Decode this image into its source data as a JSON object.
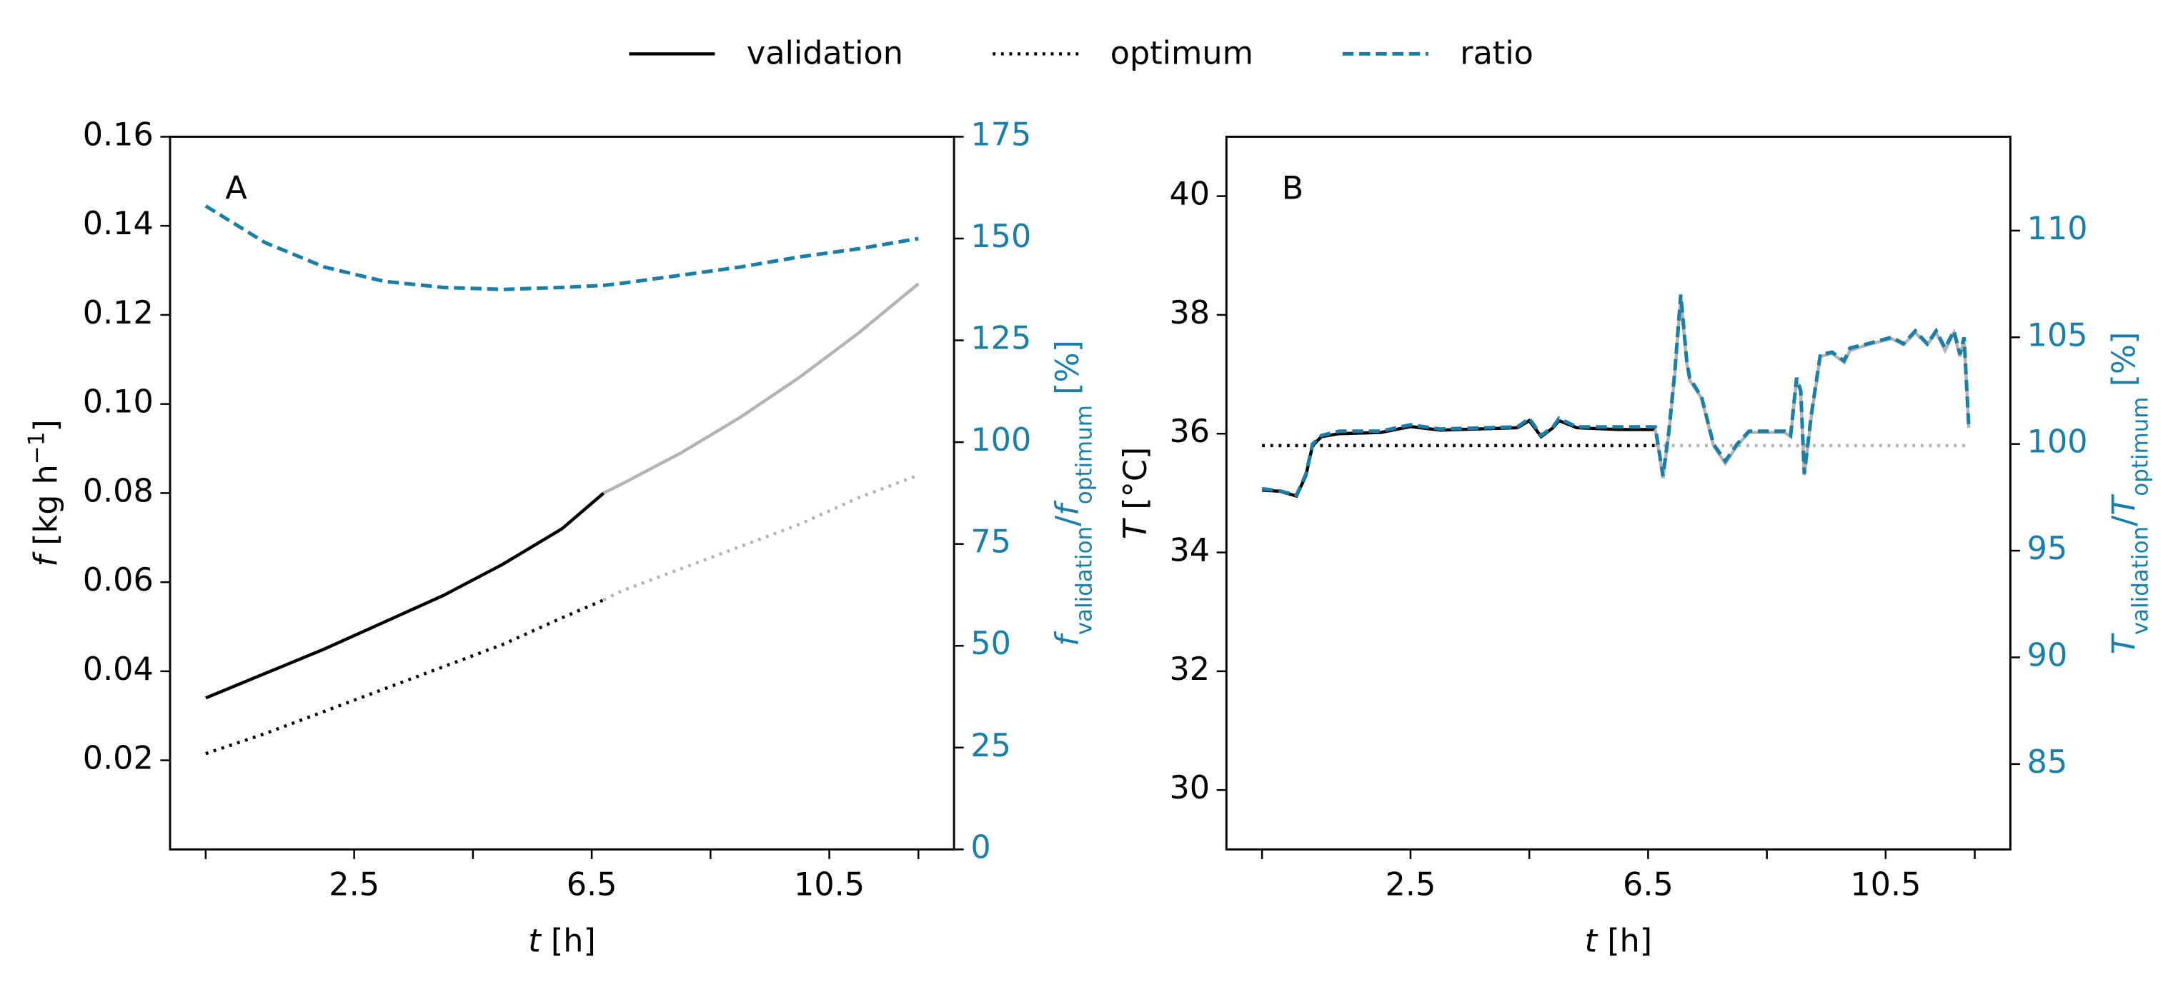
{
  "chart_data": [
    {
      "type": "line",
      "panel_label": "A",
      "xlabel": [
        {
          "text": "t",
          "style": "italic"
        },
        {
          "text": " [h]"
        }
      ],
      "ylabel": [
        {
          "text": "f",
          "style": "italic"
        },
        {
          "text": " [kg h"
        },
        {
          "text": "−1",
          "style": "sup"
        },
        {
          "text": "]"
        }
      ],
      "y2label": [
        {
          "text": "f",
          "style": "italic"
        },
        {
          "text": "validation",
          "style": "sub"
        },
        {
          "text": "/"
        },
        {
          "text": "f",
          "style": "italic"
        },
        {
          "text": "optimum",
          "style": "sub"
        },
        {
          "text": " [%]"
        }
      ],
      "y2color": "#1a7fa8",
      "xlim": [
        -0.6,
        12.6
      ],
      "xticks": [
        2.5,
        6.5,
        10.5
      ],
      "xticks_minor": [
        0,
        4.5,
        8.5,
        12
      ],
      "ylim": [
        0,
        0.16
      ],
      "yticks": [
        0.02,
        0.04,
        0.06,
        0.08,
        {
          "value": 0.1,
          "label": "0.10"
        },
        0.12,
        0.14,
        0.16
      ],
      "y2lim": [
        0,
        175
      ],
      "y2ticks": [
        0,
        25,
        50,
        75,
        100,
        125,
        150,
        175
      ],
      "x": [
        0,
        1,
        2,
        3,
        4,
        5,
        6,
        6.7,
        7,
        8,
        9,
        10,
        11,
        12
      ],
      "series": [
        {
          "name": "validation",
          "color": "#000000",
          "style": "solid",
          "values": [
            0.034,
            0.0395,
            0.045,
            0.051,
            0.057,
            0.064,
            0.072,
            0.08,
            null,
            null,
            null,
            null,
            null,
            null
          ]
        },
        {
          "name": "optimum",
          "color": "#000000",
          "style": "dotted",
          "values": [
            0.0215,
            0.026,
            0.031,
            0.036,
            0.041,
            0.046,
            0.052,
            0.056,
            null,
            null,
            null,
            null,
            null,
            null
          ]
        },
        {
          "color": "#b3b3b3",
          "style": "solid",
          "values": [
            null,
            null,
            null,
            null,
            null,
            null,
            null,
            0.08,
            0.082,
            0.089,
            0.097,
            0.106,
            0.116,
            0.127
          ]
        },
        {
          "color": "#b3b3b3",
          "style": "dotted",
          "values": [
            null,
            null,
            null,
            null,
            null,
            null,
            null,
            0.056,
            0.058,
            0.063,
            0.068,
            0.073,
            0.079,
            0.084
          ]
        },
        {
          "name": "ratio",
          "color": "#1a7fa8",
          "style": "dashed",
          "axis": "y2",
          "values": [
            158,
            149,
            143,
            139.5,
            138,
            137.5,
            138,
            138.5,
            139,
            141,
            143,
            145.5,
            147.5,
            150
          ]
        }
      ]
    },
    {
      "type": "line",
      "panel_label": "B",
      "xlabel": [
        {
          "text": "t",
          "style": "italic"
        },
        {
          "text": " [h]"
        }
      ],
      "ylabel": [
        {
          "text": "T",
          "style": "italic"
        },
        {
          "text": " [°C]"
        }
      ],
      "y2label": [
        {
          "text": "T",
          "style": "italic"
        },
        {
          "text": "validation",
          "style": "sub"
        },
        {
          "text": "/"
        },
        {
          "text": "T",
          "style": "italic"
        },
        {
          "text": "optimum",
          "style": "sub"
        },
        {
          "text": " [%]"
        }
      ],
      "y2color": "#1a7fa8",
      "xlim": [
        -0.6,
        12.6
      ],
      "xticks": [
        2.5,
        6.5,
        10.5
      ],
      "xticks_minor": [
        0,
        4.5,
        8.5,
        12
      ],
      "ylim": [
        29,
        41
      ],
      "yticks": [
        30,
        32,
        34,
        36,
        38,
        40
      ],
      "y2lim": [
        81,
        114.4
      ],
      "y2ticks": [
        85,
        90,
        95,
        100,
        105,
        110
      ],
      "x": [
        0,
        0.3,
        0.58,
        0.74,
        0.85,
        1.0,
        1.3,
        2.0,
        2.5,
        3.0,
        4.3,
        4.5,
        4.7,
        4.9,
        5.0,
        5.3,
        6.0,
        6.62,
        6.7,
        6.75,
        6.85,
        6.95,
        7.05,
        7.15,
        7.2,
        7.4,
        7.6,
        7.8,
        8.0,
        8.2,
        8.8,
        8.9,
        9.0,
        9.07,
        9.13,
        9.25,
        9.4,
        9.6,
        9.8,
        9.9,
        10.2,
        10.6,
        10.8,
        11.0,
        11.2,
        11.35,
        11.5,
        11.65,
        11.75,
        11.82,
        11.9
      ],
      "series": [
        {
          "color": "#000000",
          "style": "solid",
          "values": [
            35.05,
            35.03,
            34.95,
            35.3,
            35.8,
            35.95,
            36.0,
            36.02,
            36.12,
            36.06,
            36.1,
            36.22,
            35.95,
            36.1,
            36.22,
            36.1,
            36.07,
            36.07,
            null,
            null,
            null,
            null,
            null,
            null,
            null,
            null,
            null,
            null,
            null,
            null,
            null,
            null,
            null,
            null,
            null,
            null,
            null,
            null,
            null,
            null,
            null,
            null,
            null,
            null,
            null,
            null,
            null,
            null,
            null,
            null,
            null
          ]
        },
        {
          "color": "#000000",
          "style": "dotted",
          "values": [
            35.8,
            35.8,
            35.8,
            35.8,
            35.8,
            35.8,
            35.8,
            35.8,
            35.8,
            35.8,
            35.8,
            35.8,
            35.8,
            35.8,
            35.8,
            35.8,
            35.8,
            35.8,
            null,
            null,
            null,
            null,
            null,
            null,
            null,
            null,
            null,
            null,
            null,
            null,
            null,
            null,
            null,
            null,
            null,
            null,
            null,
            null,
            null,
            null,
            null,
            null,
            null,
            null,
            null,
            null,
            null,
            null,
            null,
            null,
            null
          ]
        },
        {
          "color": "#b3b3b3",
          "style": "solid",
          "values": [
            null,
            null,
            null,
            null,
            null,
            null,
            null,
            null,
            null,
            null,
            null,
            null,
            null,
            null,
            null,
            null,
            null,
            36.07,
            35.6,
            35.25,
            36.0,
            37.0,
            38.3,
            37.2,
            36.9,
            36.6,
            35.8,
            35.5,
            35.8,
            36.02,
            36.02,
            35.95,
            36.9,
            36.7,
            35.3,
            36.3,
            37.3,
            37.35,
            37.2,
            37.4,
            37.5,
            37.6,
            37.5,
            37.7,
            37.5,
            37.7,
            37.4,
            37.7,
            37.3,
            37.6,
            36.1
          ]
        },
        {
          "color": "#b3b3b3",
          "style": "dotted",
          "values": [
            null,
            null,
            null,
            null,
            null,
            null,
            null,
            null,
            null,
            null,
            null,
            null,
            null,
            null,
            null,
            null,
            null,
            35.8,
            35.8,
            35.8,
            35.8,
            35.8,
            35.8,
            35.8,
            35.8,
            35.8,
            35.8,
            35.8,
            35.8,
            35.8,
            35.8,
            35.8,
            35.8,
            35.8,
            35.8,
            35.8,
            35.8,
            35.8,
            35.8,
            35.8,
            35.8,
            35.8,
            35.8,
            35.8,
            35.8,
            35.8,
            35.8,
            35.8,
            35.8,
            35.8,
            35.8
          ]
        },
        {
          "color": "#1a7fa8",
          "style": "dashed",
          "axis": "y2",
          "values": [
            97.9,
            97.8,
            97.6,
            98.6,
            100,
            100.4,
            100.6,
            100.6,
            100.9,
            100.7,
            100.8,
            101.2,
            100.4,
            100.8,
            101.2,
            100.8,
            100.8,
            100.8,
            99.4,
            98.5,
            100.6,
            103.4,
            107,
            103.9,
            103.1,
            102.2,
            100,
            99.2,
            100,
            100.6,
            100.6,
            100.4,
            103.1,
            102.5,
            98.6,
            101.4,
            104.2,
            104.3,
            103.9,
            104.5,
            104.7,
            105,
            104.7,
            105.3,
            104.7,
            105.3,
            104.5,
            105.3,
            104.2,
            105,
            100.8
          ]
        }
      ]
    }
  ]
}
